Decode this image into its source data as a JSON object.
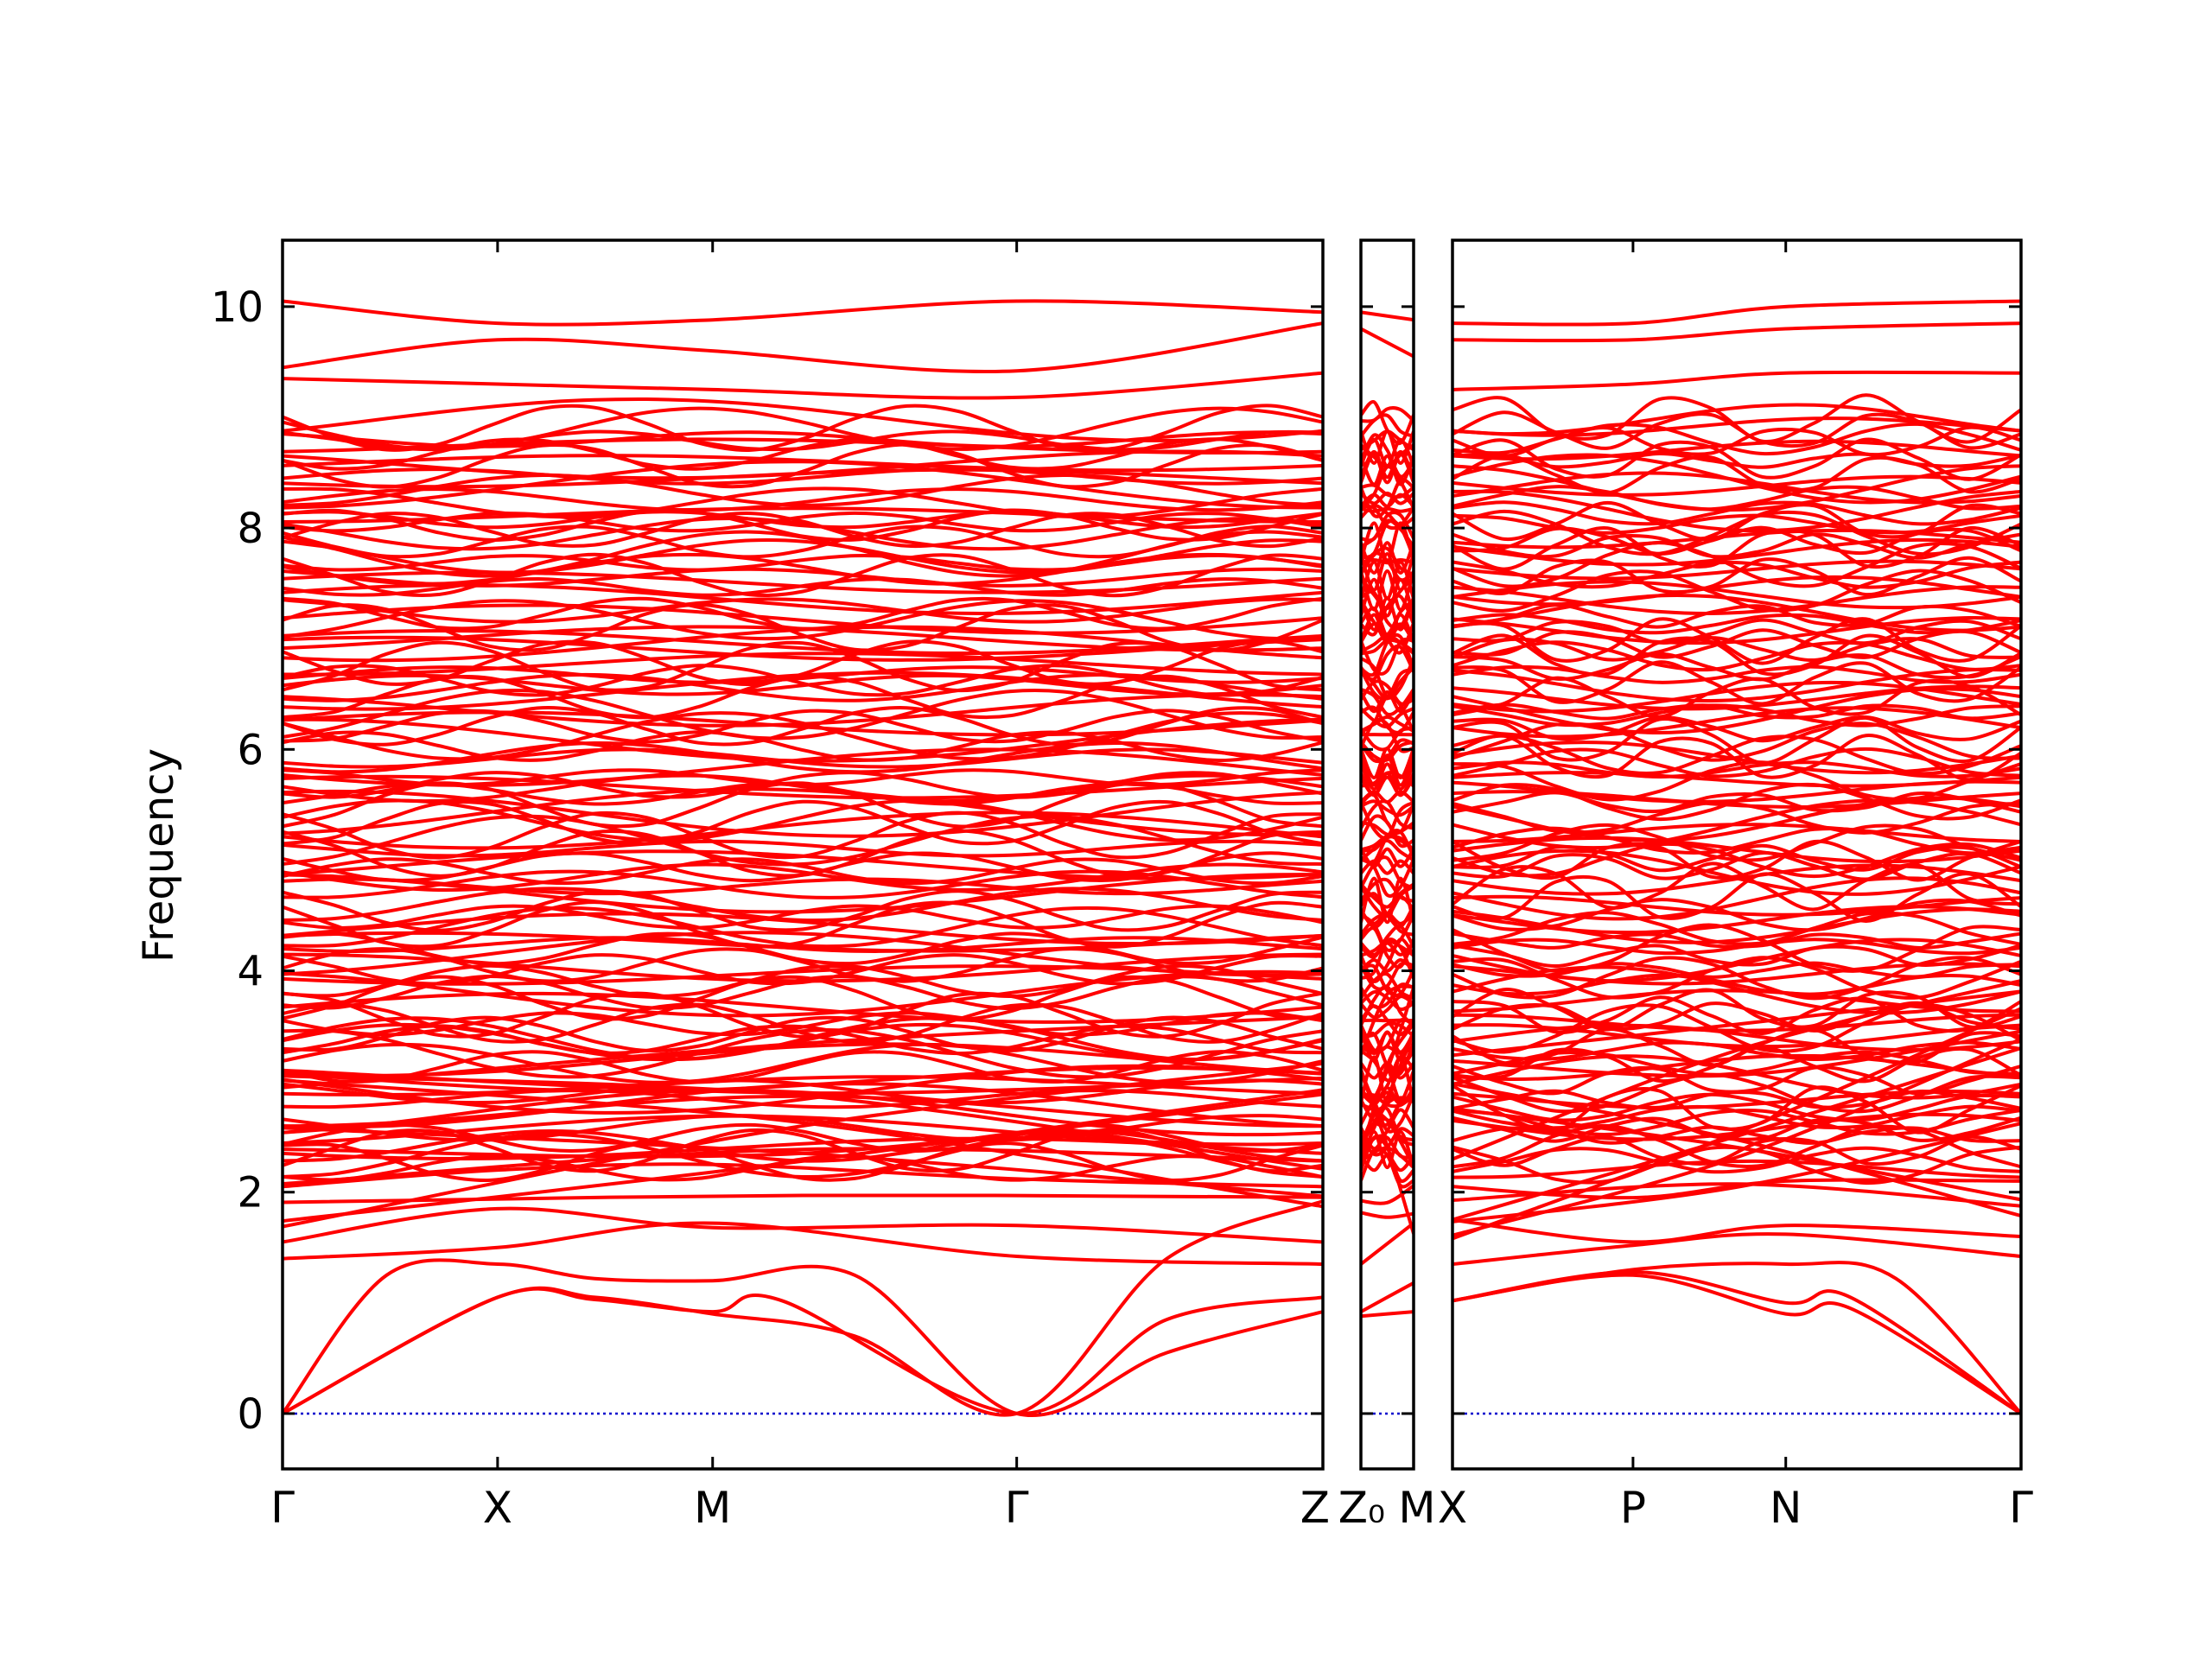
{
  "colors": {
    "bands": "#ff0000",
    "zero_line": "#0000cc",
    "axes": "#000000",
    "background": "#ffffff"
  },
  "chart_data": {
    "type": "line",
    "title": "",
    "ylabel": "Frequency",
    "xlabel": "",
    "ylim": [
      -0.5,
      10.6
    ],
    "yticks": [
      0,
      2,
      4,
      6,
      8,
      10
    ],
    "ytick_labels": [
      "0",
      "2",
      "4",
      "6",
      "8",
      "10"
    ],
    "grid": false,
    "legend": "none",
    "zero_line": {
      "y": 0,
      "style": "dotted"
    },
    "panels": [
      {
        "path": [
          "Γ",
          "X",
          "M",
          "Γ",
          "Z"
        ],
        "tick_labels": [
          "Γ",
          "X",
          "M",
          "Γ",
          "Z"
        ],
        "k_points": [
          0.0,
          0.2067,
          0.4134,
          0.7057,
          1.0
        ],
        "acoustic_branches": [
          [
            [
              0.0,
              0.0
            ],
            [
              0.1,
              1.25
            ],
            [
              0.2067,
              1.35
            ],
            [
              0.3,
              1.22
            ],
            [
              0.4134,
              1.2
            ],
            [
              0.55,
              1.25
            ],
            [
              0.7057,
              0.0
            ],
            [
              0.85,
              0.55
            ],
            [
              1.0,
              0.92
            ]
          ],
          [
            [
              0.0,
              0.0
            ],
            [
              0.2067,
              1.05
            ],
            [
              0.3,
              1.03
            ],
            [
              0.4134,
              0.92
            ],
            [
              0.48,
              1.02
            ],
            [
              0.7057,
              0.0
            ],
            [
              0.85,
              0.85
            ],
            [
              1.0,
              1.05
            ]
          ],
          [
            [
              0.0,
              0.0
            ],
            [
              0.2067,
              1.05
            ],
            [
              0.3,
              1.05
            ],
            [
              0.4134,
              0.9
            ],
            [
              0.55,
              0.7
            ],
            [
              0.7057,
              0.0
            ],
            [
              0.85,
              1.4
            ],
            [
              1.0,
              1.92
            ]
          ]
        ],
        "optical_band_edges": [
          [
            [
              0.0,
              1.4
            ],
            [
              0.2067,
              1.5
            ],
            [
              0.4134,
              1.72
            ],
            [
              0.7057,
              1.42
            ],
            [
              1.0,
              1.35
            ]
          ],
          [
            [
              0.0,
              1.55
            ],
            [
              0.2067,
              1.85
            ],
            [
              0.4134,
              1.68
            ],
            [
              0.7057,
              1.7
            ],
            [
              1.0,
              1.55
            ]
          ],
          [
            [
              0.0,
              2.05
            ],
            [
              0.2067,
              2.2
            ],
            [
              0.4134,
              2.25
            ],
            [
              0.7057,
              2.12
            ],
            [
              1.0,
              2.05
            ]
          ],
          [
            [
              0.0,
              10.05
            ],
            [
              0.2067,
              9.85
            ],
            [
              0.4134,
              9.88
            ],
            [
              0.7057,
              10.05
            ],
            [
              1.0,
              9.95
            ]
          ],
          [
            [
              0.0,
              9.45
            ],
            [
              0.2067,
              9.7
            ],
            [
              0.4134,
              9.6
            ],
            [
              0.7057,
              9.42
            ],
            [
              1.0,
              9.85
            ]
          ],
          [
            [
              0.0,
              9.35
            ],
            [
              0.2067,
              9.3
            ],
            [
              0.4134,
              9.25
            ],
            [
              0.7057,
              9.18
            ],
            [
              1.0,
              9.4
            ]
          ]
        ]
      },
      {
        "path": [
          "Z₀",
          "M"
        ],
        "tick_labels": [
          "Z₀",
          "M"
        ],
        "k_points": [
          0.0,
          1.0
        ],
        "acoustic_branches": [
          [
            [
              0.0,
              0.92
            ],
            [
              1.0,
              1.18
            ]
          ],
          [
            [
              0.0,
              0.88
            ],
            [
              1.0,
              0.92
            ]
          ]
        ],
        "optical_band_edges": [
          [
            [
              0.0,
              1.35
            ],
            [
              1.0,
              1.72
            ]
          ],
          [
            [
              0.0,
              9.95
            ],
            [
              1.0,
              9.88
            ]
          ],
          [
            [
              0.0,
              9.8
            ],
            [
              1.0,
              9.55
            ]
          ]
        ]
      },
      {
        "path": [
          "X",
          "P",
          "N",
          "Γ"
        ],
        "tick_labels": [
          "X",
          "P",
          "N",
          "Γ"
        ],
        "k_points": [
          0.0,
          0.3175,
          0.5862,
          1.0
        ],
        "acoustic_branches": [
          [
            [
              0.0,
              1.02
            ],
            [
              0.3175,
              1.25
            ],
            [
              0.5862,
              0.9
            ],
            [
              0.7,
              0.95
            ],
            [
              1.0,
              0.0
            ]
          ],
          [
            [
              0.0,
              1.02
            ],
            [
              0.3175,
              1.28
            ],
            [
              0.5862,
              1.0
            ],
            [
              0.7,
              1.05
            ],
            [
              1.0,
              0.0
            ]
          ],
          [
            [
              0.0,
              1.02
            ],
            [
              0.3175,
              1.3
            ],
            [
              0.5862,
              1.35
            ],
            [
              0.78,
              1.22
            ],
            [
              1.0,
              0.0
            ]
          ]
        ],
        "optical_band_edges": [
          [
            [
              0.0,
              1.35
            ],
            [
              0.3175,
              1.52
            ],
            [
              0.5862,
              1.62
            ],
            [
              1.0,
              1.42
            ]
          ],
          [
            [
              0.0,
              1.75
            ],
            [
              0.3175,
              1.55
            ],
            [
              0.5862,
              1.7
            ],
            [
              1.0,
              1.6
            ]
          ],
          [
            [
              0.0,
              2.05
            ],
            [
              0.3175,
              1.95
            ],
            [
              0.5862,
              2.1
            ],
            [
              1.0,
              2.1
            ]
          ],
          [
            [
              0.0,
              9.85
            ],
            [
              0.3175,
              9.85
            ],
            [
              0.5862,
              10.0
            ],
            [
              1.0,
              10.05
            ]
          ],
          [
            [
              0.0,
              9.7
            ],
            [
              0.3175,
              9.7
            ],
            [
              0.5862,
              9.8
            ],
            [
              1.0,
              9.85
            ]
          ],
          [
            [
              0.0,
              9.25
            ],
            [
              0.3175,
              9.3
            ],
            [
              0.5862,
              9.4
            ],
            [
              1.0,
              9.4
            ]
          ]
        ]
      }
    ]
  }
}
